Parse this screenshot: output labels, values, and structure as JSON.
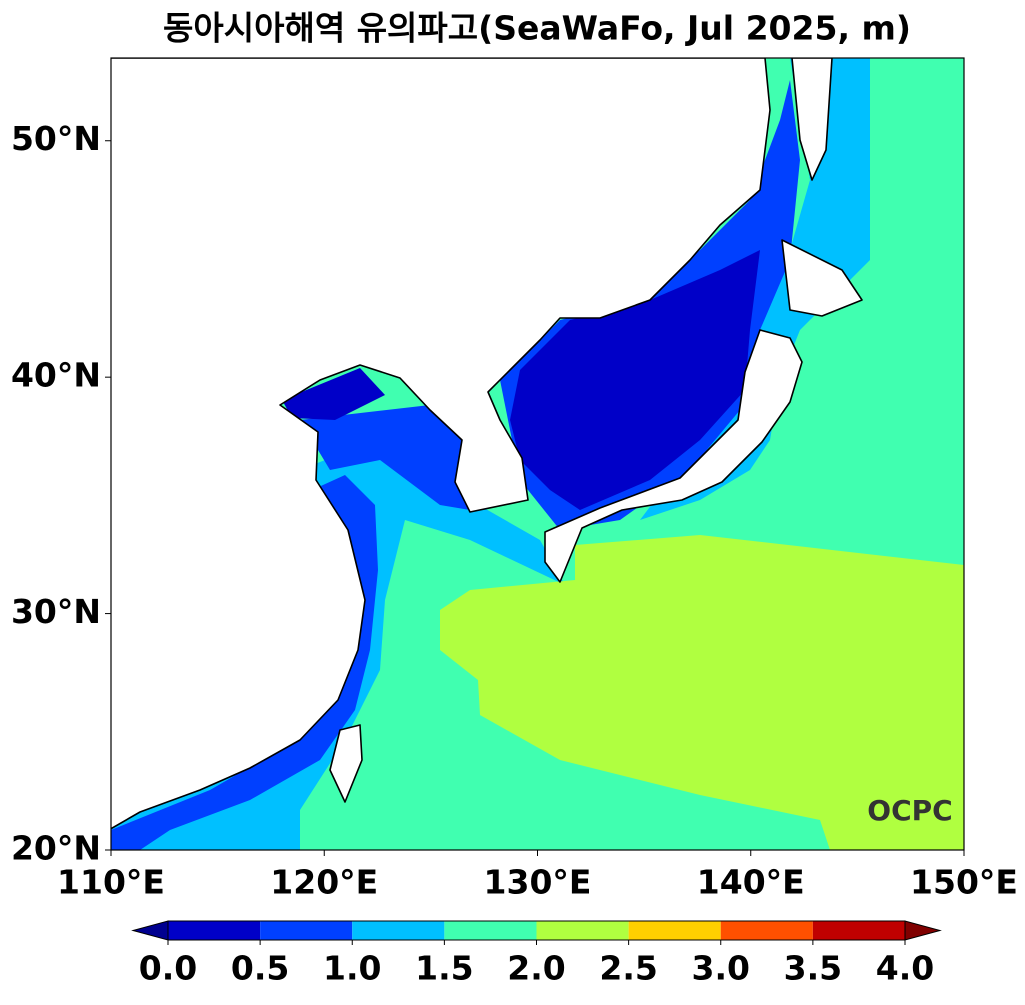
{
  "map": {
    "title": "동아시아해역 유의파고(SeaWaFo, Jul 2025, m)",
    "xlim": [
      110,
      150
    ],
    "ylim": [
      20,
      53.5
    ],
    "xticks": [
      {
        "value": 110,
        "label": "110°E"
      },
      {
        "value": 120,
        "label": "120°E"
      },
      {
        "value": 130,
        "label": "130°E"
      },
      {
        "value": 140,
        "label": "140°E"
      },
      {
        "value": 150,
        "label": "150°E"
      }
    ],
    "yticks": [
      {
        "value": 20,
        "label": "20°N"
      },
      {
        "value": 30,
        "label": "30°N"
      },
      {
        "value": 40,
        "label": "40°N"
      },
      {
        "value": 50,
        "label": "50°N"
      }
    ],
    "colorbar": {
      "ticks": [
        {
          "value": 0,
          "label": "0.0"
        },
        {
          "value": 0.5,
          "label": "0.5"
        },
        {
          "value": 1,
          "label": "1.0"
        },
        {
          "value": 1.5,
          "label": "1.5"
        },
        {
          "value": 2,
          "label": "2.0"
        },
        {
          "value": 2.5,
          "label": "2.5"
        },
        {
          "value": 3,
          "label": "3.0"
        },
        {
          "value": 3.5,
          "label": "3.5"
        },
        {
          "value": 4,
          "label": "4.0"
        }
      ],
      "colors": [
        "#000090",
        "#0000c8",
        "#0040ff",
        "#00c0ff",
        "#40ffb0",
        "#b0ff40",
        "#ffd000",
        "#ff5000",
        "#c00000",
        "#800000"
      ]
    },
    "logo": "OCPC"
  }
}
